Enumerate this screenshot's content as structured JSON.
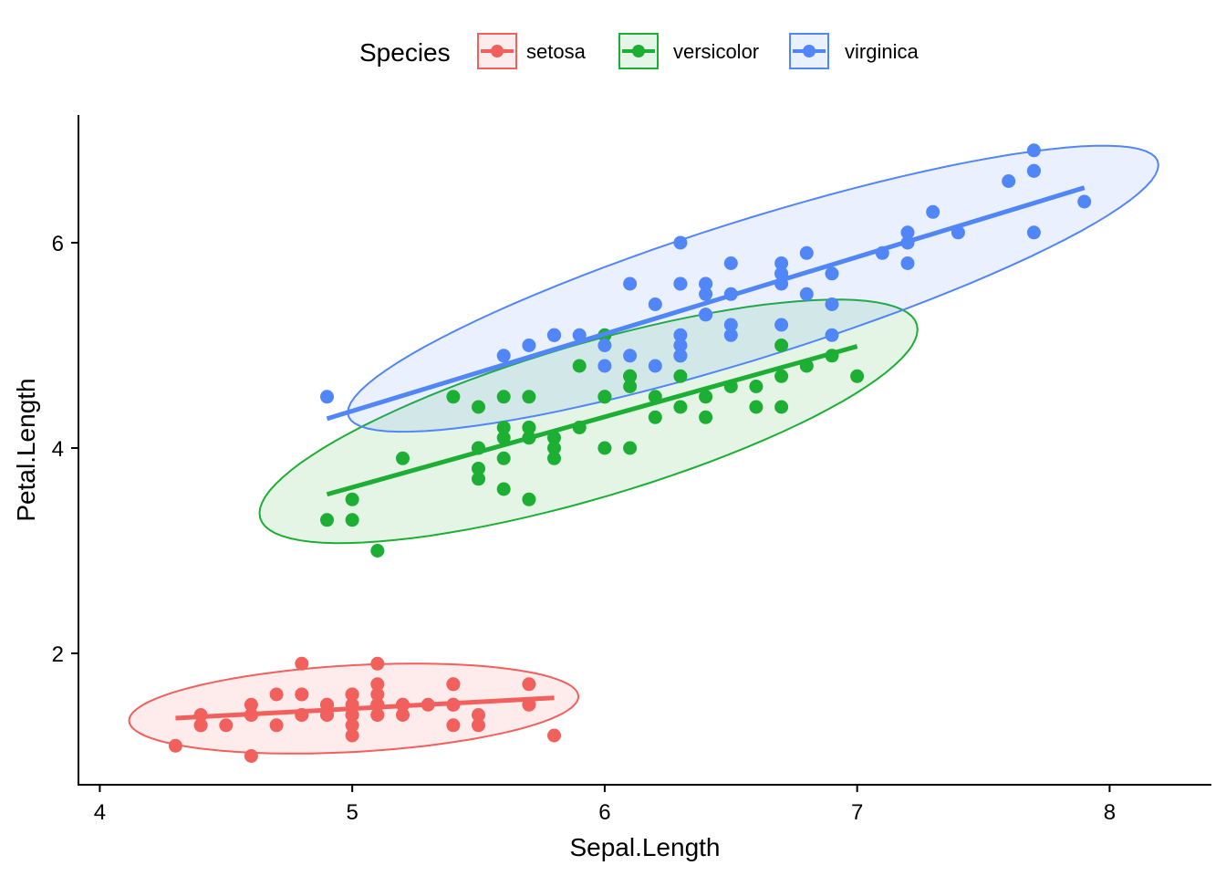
{
  "chart_data": {
    "type": "scatter",
    "title": "",
    "xlabel": "Sepal.Length",
    "ylabel": "Petal.Length",
    "xlim": [
      3.91,
      8.45
    ],
    "ylim": [
      0.72,
      7.23
    ],
    "x_ticks": [
      4,
      5,
      6,
      7,
      8
    ],
    "y_ticks": [
      2,
      4,
      6
    ],
    "x_tick_labels": [
      "4",
      "5",
      "6",
      "7",
      "8"
    ],
    "y_tick_labels": [
      "2",
      "4",
      "6"
    ],
    "grid": false,
    "legend": {
      "title": "Species",
      "position": "top",
      "entries": [
        "setosa",
        "versicolor",
        "virginica"
      ]
    },
    "overlays": [
      "linear regression line per group",
      "95% confidence ellipse per group"
    ],
    "series": [
      {
        "name": "setosa",
        "color": "#F1605D",
        "fill": "#FDECEC",
        "x": [
          5.1,
          4.9,
          4.7,
          4.6,
          5.0,
          5.4,
          4.6,
          5.0,
          4.4,
          4.9,
          5.4,
          4.8,
          4.8,
          4.3,
          5.8,
          5.7,
          5.4,
          5.1,
          5.7,
          5.1,
          5.4,
          5.1,
          4.6,
          5.1,
          4.8,
          5.0,
          5.0,
          5.2,
          5.2,
          4.7,
          4.8,
          5.4,
          5.2,
          5.5,
          4.9,
          5.0,
          5.5,
          4.9,
          4.4,
          5.1,
          5.0,
          4.5,
          4.4,
          5.0,
          5.1,
          4.8,
          5.1,
          4.6,
          5.3,
          5.0
        ],
        "y": [
          1.4,
          1.4,
          1.3,
          1.5,
          1.4,
          1.7,
          1.4,
          1.5,
          1.4,
          1.5,
          1.5,
          1.6,
          1.4,
          1.1,
          1.2,
          1.5,
          1.3,
          1.4,
          1.7,
          1.5,
          1.7,
          1.5,
          1.0,
          1.7,
          1.9,
          1.6,
          1.6,
          1.5,
          1.4,
          1.6,
          1.6,
          1.5,
          1.5,
          1.4,
          1.5,
          1.2,
          1.3,
          1.4,
          1.3,
          1.5,
          1.3,
          1.3,
          1.3,
          1.6,
          1.9,
          1.4,
          1.6,
          1.4,
          1.5,
          1.4
        ]
      },
      {
        "name": "versicolor",
        "color": "#1DAE34",
        "fill": "#E5F5E7",
        "x": [
          7.0,
          6.4,
          6.9,
          5.5,
          6.5,
          5.7,
          6.3,
          4.9,
          6.6,
          5.2,
          5.0,
          5.9,
          6.0,
          6.1,
          5.6,
          6.7,
          5.6,
          5.8,
          6.2,
          5.6,
          5.9,
          6.1,
          6.3,
          6.1,
          6.4,
          6.6,
          6.8,
          6.7,
          6.0,
          5.7,
          5.5,
          5.5,
          5.8,
          6.0,
          5.4,
          6.0,
          6.7,
          6.3,
          5.6,
          5.5,
          5.5,
          6.1,
          5.8,
          5.0,
          5.6,
          5.7,
          5.7,
          6.2,
          5.1,
          5.7
        ],
        "y": [
          4.7,
          4.5,
          4.9,
          4.0,
          4.6,
          4.5,
          4.7,
          3.3,
          4.6,
          3.9,
          3.5,
          4.2,
          4.0,
          4.7,
          3.6,
          4.4,
          4.5,
          4.1,
          4.5,
          3.9,
          4.8,
          4.0,
          4.9,
          4.7,
          4.3,
          4.4,
          4.8,
          5.0,
          4.5,
          3.5,
          3.8,
          3.7,
          3.9,
          5.1,
          4.5,
          4.5,
          4.7,
          4.4,
          4.1,
          4.0,
          4.4,
          4.6,
          4.0,
          3.3,
          4.2,
          4.2,
          4.2,
          4.3,
          3.0,
          4.1
        ]
      },
      {
        "name": "virginica",
        "color": "#5086F7",
        "fill": "#EAF1FE",
        "x": [
          6.3,
          5.8,
          7.1,
          6.3,
          6.5,
          7.6,
          4.9,
          7.3,
          6.7,
          7.2,
          6.5,
          6.4,
          6.8,
          5.7,
          5.8,
          6.4,
          6.5,
          7.7,
          7.7,
          6.0,
          6.9,
          5.6,
          7.7,
          6.3,
          6.7,
          7.2,
          6.2,
          6.1,
          6.4,
          7.2,
          7.4,
          7.9,
          6.4,
          6.3,
          6.1,
          7.7,
          6.3,
          6.4,
          6.0,
          6.9,
          6.7,
          6.9,
          5.8,
          6.8,
          6.7,
          6.7,
          6.3,
          6.5,
          6.2,
          5.9
        ],
        "y": [
          6.0,
          5.1,
          5.9,
          5.6,
          5.8,
          6.6,
          4.5,
          6.3,
          5.8,
          6.1,
          5.1,
          5.3,
          5.5,
          5.0,
          5.1,
          5.3,
          5.5,
          6.7,
          6.9,
          5.0,
          5.7,
          4.9,
          6.7,
          4.9,
          5.7,
          6.0,
          4.8,
          4.9,
          5.6,
          5.8,
          6.1,
          6.4,
          5.6,
          5.1,
          5.6,
          6.1,
          5.6,
          5.5,
          4.8,
          5.4,
          5.6,
          5.1,
          5.1,
          5.9,
          5.7,
          5.2,
          5.0,
          5.2,
          5.4,
          5.1
        ]
      }
    ]
  }
}
